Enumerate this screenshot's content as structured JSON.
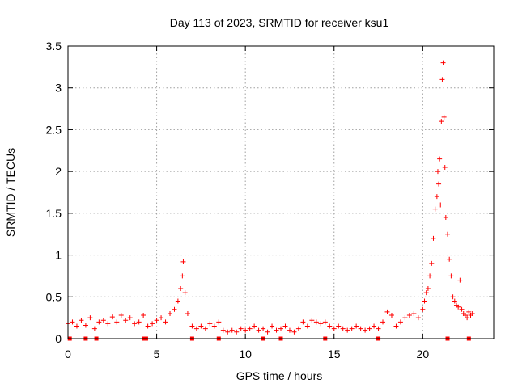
{
  "chart_data": {
    "type": "scatter",
    "title": "Day 113 of 2023, SRMTID for receiver ksu1",
    "xlabel": "GPS time / hours",
    "ylabel": "SRMTID / TECUs",
    "xlim": [
      0,
      24
    ],
    "ylim": [
      0,
      3.5
    ],
    "xticks": [
      0,
      5,
      10,
      15,
      20
    ],
    "xtick_labels": [
      "0",
      "5",
      "10",
      "15",
      "20"
    ],
    "yticks": [
      0,
      0.5,
      1,
      1.5,
      2,
      2.5,
      3,
      3.5
    ],
    "ytick_labels": [
      "0",
      "0.5",
      "1",
      "1.5",
      "2",
      "2.5",
      "3",
      "3.5"
    ],
    "grid": true,
    "legend": "none",
    "color": "#ff0000",
    "series": [
      {
        "name": "SRMTID",
        "marker": "plus",
        "x": [
          0.0,
          0.25,
          0.5,
          0.75,
          1.0,
          1.25,
          1.5,
          1.75,
          2.0,
          2.25,
          2.5,
          2.75,
          3.0,
          3.25,
          3.5,
          3.75,
          4.0,
          4.25,
          4.5,
          4.75,
          5.0,
          5.25,
          5.5,
          5.75,
          6.0,
          6.2,
          6.35,
          6.45,
          6.5,
          6.6,
          6.75,
          7.0,
          7.25,
          7.5,
          7.75,
          8.0,
          8.25,
          8.5,
          8.75,
          9.0,
          9.25,
          9.5,
          9.75,
          10.0,
          10.25,
          10.5,
          10.75,
          11.0,
          11.25,
          11.5,
          11.75,
          12.0,
          12.25,
          12.5,
          12.75,
          13.0,
          13.25,
          13.5,
          13.75,
          14.0,
          14.25,
          14.5,
          14.75,
          15.0,
          15.25,
          15.5,
          15.75,
          16.0,
          16.25,
          16.5,
          16.75,
          17.0,
          17.25,
          17.5,
          17.75,
          18.0,
          18.25,
          18.5,
          18.75,
          19.0,
          19.25,
          19.5,
          19.75,
          20.0,
          20.1,
          20.2,
          20.3,
          20.4,
          20.5,
          20.6,
          20.7,
          20.8,
          20.85,
          20.9,
          20.95,
          21.0,
          21.05,
          21.1,
          21.15,
          21.2,
          21.25,
          21.3,
          21.4,
          21.5,
          21.6,
          21.7,
          21.8,
          21.9,
          22.0,
          22.1,
          22.2,
          22.3,
          22.4,
          22.5,
          22.6,
          22.7,
          22.8
        ],
        "y": [
          0.18,
          0.2,
          0.15,
          0.22,
          0.16,
          0.25,
          0.12,
          0.2,
          0.22,
          0.18,
          0.26,
          0.2,
          0.28,
          0.22,
          0.25,
          0.18,
          0.2,
          0.28,
          0.15,
          0.18,
          0.22,
          0.25,
          0.2,
          0.3,
          0.35,
          0.45,
          0.6,
          0.75,
          0.92,
          0.55,
          0.3,
          0.15,
          0.12,
          0.15,
          0.12,
          0.18,
          0.15,
          0.2,
          0.1,
          0.08,
          0.1,
          0.08,
          0.12,
          0.1,
          0.12,
          0.15,
          0.1,
          0.12,
          0.08,
          0.15,
          0.1,
          0.12,
          0.15,
          0.1,
          0.08,
          0.12,
          0.2,
          0.15,
          0.22,
          0.2,
          0.18,
          0.2,
          0.15,
          0.12,
          0.15,
          0.12,
          0.1,
          0.12,
          0.15,
          0.12,
          0.1,
          0.12,
          0.15,
          0.12,
          0.2,
          0.32,
          0.28,
          0.15,
          0.2,
          0.25,
          0.28,
          0.3,
          0.25,
          0.35,
          0.45,
          0.55,
          0.6,
          0.75,
          0.9,
          1.2,
          1.55,
          1.7,
          2.0,
          1.85,
          2.15,
          1.6,
          2.6,
          3.1,
          3.3,
          2.65,
          2.05,
          1.45,
          1.25,
          0.95,
          0.75,
          0.5,
          0.45,
          0.4,
          0.38,
          0.7,
          0.35,
          0.3,
          0.28,
          0.25,
          0.32,
          0.28,
          0.3
        ]
      }
    ],
    "gap_markers_x": [
      0.1,
      1.0,
      1.6,
      4.3,
      4.4,
      7.0,
      8.5,
      11.0,
      12.0,
      14.5,
      17.5,
      21.4,
      22.6
    ]
  }
}
